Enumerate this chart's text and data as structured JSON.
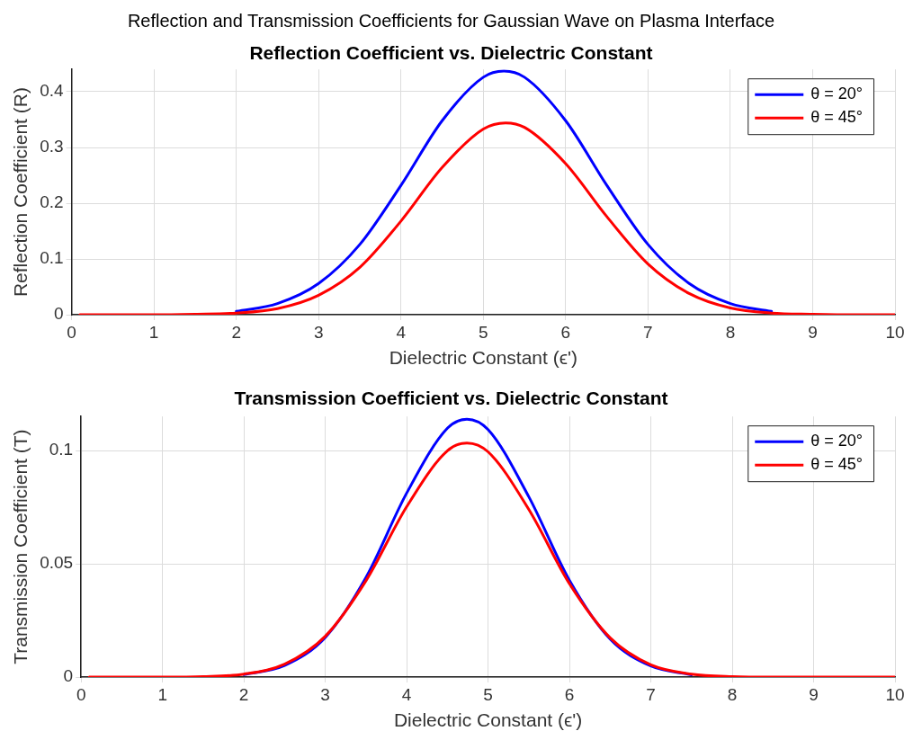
{
  "chart_data": [
    {
      "type": "line",
      "title": "Reflection and Transmission Coefficients for Gaussian Wave on Plasma Interface",
      "subtitle": "Reflection Coefficient vs. Dielectric Constant",
      "xlabel": "Dielectric Constant (ϵ')",
      "ylabel": "Reflection Coefficient (R)",
      "xlim": [
        0,
        10
      ],
      "xticks": [
        0,
        1,
        2,
        3,
        4,
        5,
        6,
        7,
        8,
        9,
        10
      ],
      "ylim": [
        0,
        0.44
      ],
      "yticks": [
        0,
        0.1,
        0.2,
        0.3,
        0.4
      ],
      "grid": true,
      "legend": "top right",
      "marker": "none",
      "line_style": "solid",
      "series": [
        {
          "name": "θ = 20°",
          "color": "#0000ff",
          "x": [
            2,
            2.5,
            3,
            3.5,
            4,
            4.5,
            5,
            5.25,
            5.5,
            6,
            6.5,
            7,
            7.5,
            8,
            8.5
          ],
          "values": [
            0.006,
            0.02,
            0.056,
            0.126,
            0.232,
            0.348,
            0.426,
            0.437,
            0.426,
            0.348,
            0.232,
            0.126,
            0.056,
            0.02,
            0.006
          ]
        },
        {
          "name": "θ = 45°",
          "color": "#ff0000",
          "x": [
            0.1,
            0.5,
            1,
            1.5,
            2,
            2.5,
            3,
            3.5,
            4,
            4.5,
            5,
            5.27,
            5.5,
            6,
            6.5,
            7,
            7.5,
            8,
            8.5,
            9,
            9.5,
            10
          ],
          "values": [
            0,
            0,
            0,
            0.001,
            0.003,
            0.011,
            0.035,
            0.085,
            0.168,
            0.264,
            0.333,
            0.344,
            0.336,
            0.271,
            0.176,
            0.091,
            0.038,
            0.012,
            0.003,
            0.001,
            0,
            0
          ]
        }
      ]
    },
    {
      "type": "line",
      "title": "Transmission Coefficient vs. Dielectric Constant",
      "xlabel": "Dielectric Constant (ϵ')",
      "ylabel": "Transmission Coefficient (T)",
      "xlim": [
        0,
        10
      ],
      "xticks": [
        0,
        1,
        2,
        3,
        4,
        5,
        6,
        7,
        8,
        9,
        10
      ],
      "ylim": [
        0,
        0.115
      ],
      "yticks": [
        0,
        0.05,
        0.1
      ],
      "grid": true,
      "legend": "top right",
      "marker": "none",
      "line_style": "solid",
      "series": [
        {
          "name": "θ = 20°",
          "color": "#0000ff",
          "x": [
            2,
            2.5,
            3,
            3.5,
            4,
            4.5,
            4.74,
            5,
            5.5,
            6,
            6.5,
            7,
            7.5
          ],
          "values": [
            0.0011,
            0.0051,
            0.0175,
            0.044,
            0.0812,
            0.1098,
            0.1138,
            0.1092,
            0.0796,
            0.0427,
            0.0168,
            0.0049,
            0.001
          ]
        },
        {
          "name": "θ = 45°",
          "color": "#ff0000",
          "x": [
            0.1,
            0.5,
            1,
            1.5,
            2,
            2.5,
            3,
            3.5,
            4,
            4.5,
            4.74,
            5,
            5.5,
            6,
            6.5,
            7,
            7.5,
            8,
            8.5,
            9,
            10
          ],
          "values": [
            0,
            0,
            0,
            0.0002,
            0.0013,
            0.0057,
            0.018,
            0.0425,
            0.0752,
            0.0999,
            0.1033,
            0.0994,
            0.074,
            0.0412,
            0.0173,
            0.0054,
            0.0013,
            0.0002,
            0,
            0,
            0
          ]
        }
      ]
    }
  ]
}
